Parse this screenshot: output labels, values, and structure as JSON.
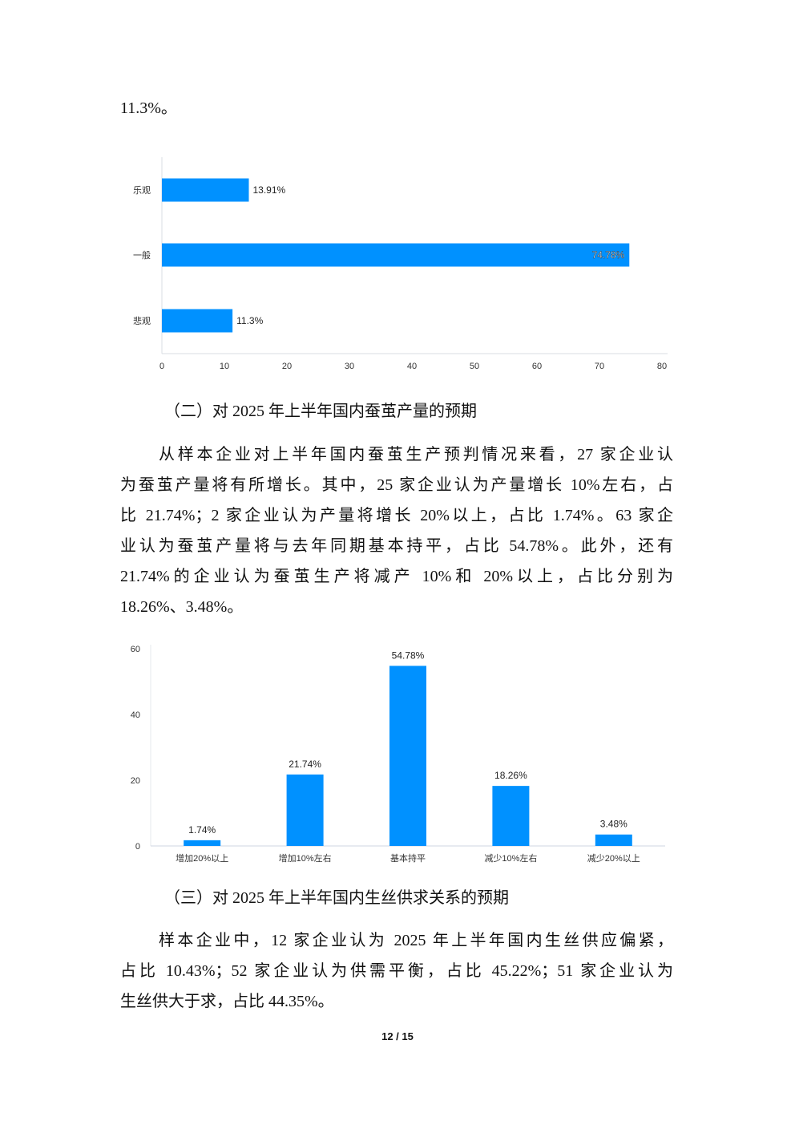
{
  "top_text": "11.3%。",
  "section2": {
    "heading": "（二）对 2025 年上半年国内蚕茧产量的预期",
    "lines": [
      "从样本企业对上半年国内蚕茧生产预判情况来看，27 家企业认",
      "为蚕茧产量将有所增长。其中，25 家企业认为产量增长 10%左右，占",
      "比 21.74%；2 家企业认为产量将增长 20%以上，占比 1.74%。63 家企",
      "业认为蚕茧产量将与去年同期基本持平，占比 54.78%。此外，还有",
      "21.74%的企业认为蚕茧生产将减产 10%和 20%以上，占比分别为",
      "18.26%、3.48%。"
    ]
  },
  "section3": {
    "heading": "（三）对 2025 年上半年国内生丝供求关系的预期",
    "lines": [
      "样本企业中，12 家企业认为 2025 年上半年国内生丝供应偏紧，",
      "占比 10.43%；52 家企业认为供需平衡，占比 45.22%；51 家企业认为",
      "生丝供大于求，占比 44.35%。"
    ]
  },
  "page_number": "12 / 15",
  "chart_data": [
    {
      "type": "bar",
      "orientation": "horizontal",
      "categories": [
        "乐观",
        "一般",
        "悲观"
      ],
      "values": [
        13.91,
        74.78,
        11.3
      ],
      "data_labels": [
        "13.91%",
        "74.78%",
        "11.3%"
      ],
      "xlim": [
        0,
        80
      ],
      "x_ticks": [
        "0",
        "10",
        "20",
        "30",
        "40",
        "50",
        "60",
        "70",
        "80"
      ],
      "grid": false,
      "color": "#0091FF"
    },
    {
      "type": "bar",
      "orientation": "vertical",
      "categories": [
        "增加20%以上",
        "增加10%左右",
        "基本持平",
        "减少10%左右",
        "减少20%以上"
      ],
      "values": [
        1.74,
        21.74,
        54.78,
        18.26,
        3.48
      ],
      "data_labels": [
        "1.74%",
        "21.74%",
        "54.78%",
        "18.26%",
        "3.48%"
      ],
      "ylim": [
        0,
        60
      ],
      "y_ticks": [
        "0",
        "20",
        "40",
        "60"
      ],
      "grid": false,
      "color": "#0091FF"
    }
  ]
}
